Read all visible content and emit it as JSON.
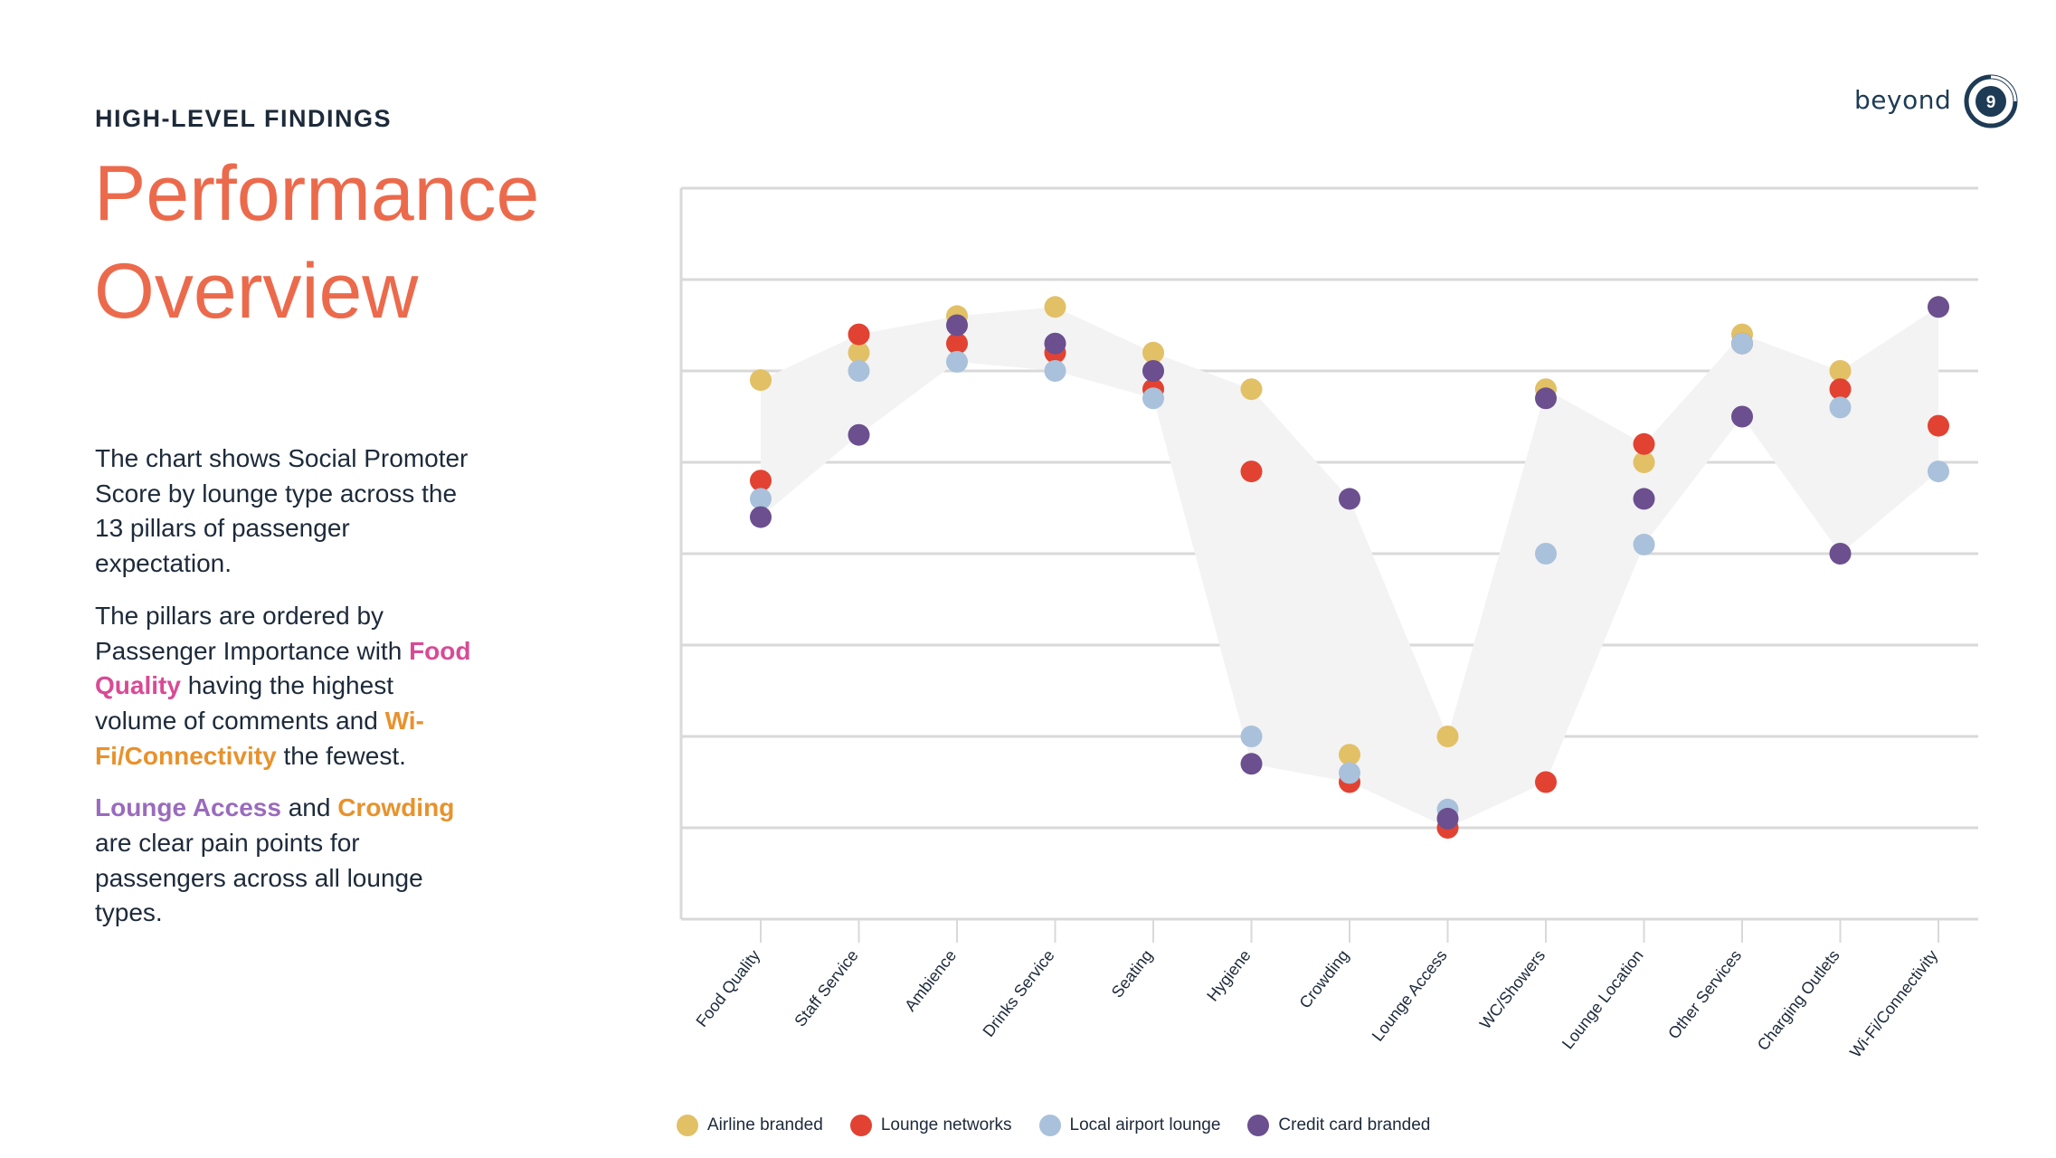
{
  "header": {
    "eyebrow": "HIGH-LEVEL FINDINGS",
    "title_line1": "Performance",
    "title_line2": "Overview"
  },
  "logo": {
    "word": "beyond",
    "badge": "9"
  },
  "body": {
    "p1": "The chart shows Social Promoter Score by lounge type across the 13 pillars of passenger expectation.",
    "p2_a": "The pillars are ordered by Passenger Importance with ",
    "p2_hl1": "Food Quality",
    "p2_b": " having the highest volume of comments and ",
    "p2_hl2": "Wi-Fi/Connectivity",
    "p2_c": " the fewest.",
    "p3_hl1": "Lounge Access",
    "p3_a": " and ",
    "p3_hl2": "Crowding",
    "p3_b": " are clear pain points for passengers across all lounge types."
  },
  "colors": {
    "title": "#ec6a4c",
    "airline": "#e2c066",
    "networks": "#e24232",
    "local": "#a9c1db",
    "credit": "#6b4f8f",
    "band": "#f3f3f3",
    "grid": "#d9d9d9"
  },
  "chart_data": {
    "type": "scatter",
    "categories": [
      "Food Quality",
      "Staff Service",
      "Ambience",
      "Drinks Service",
      "Seating",
      "Hygiene",
      "Crowding",
      "Lounge Access",
      "WC/Showers",
      "Lounge Location",
      "Other Services",
      "Charging Outlets",
      "Wi-Fi/Connectivity"
    ],
    "ylim": [
      -40,
      40
    ],
    "grid": true,
    "legend": "bottom-left",
    "series": [
      {
        "name": "Airline branded",
        "color": "#e2c066",
        "values": [
          19,
          22,
          26,
          27,
          22,
          18,
          -22,
          -20,
          18,
          10,
          24,
          20,
          27
        ]
      },
      {
        "name": "Lounge networks",
        "color": "#e24232",
        "values": [
          8,
          24,
          23,
          22,
          18,
          9,
          -25,
          -30,
          -25,
          12,
          23,
          18,
          14
        ]
      },
      {
        "name": "Local airport lounge",
        "color": "#a9c1db",
        "values": [
          6,
          20,
          21,
          20,
          17,
          -20,
          -24,
          -28,
          0,
          1,
          23,
          16,
          9
        ]
      },
      {
        "name": "Credit card branded",
        "color": "#6b4f8f",
        "values": [
          4,
          13,
          25,
          23,
          20,
          -23,
          6,
          -29,
          17,
          6,
          15,
          0,
          27
        ]
      }
    ]
  }
}
